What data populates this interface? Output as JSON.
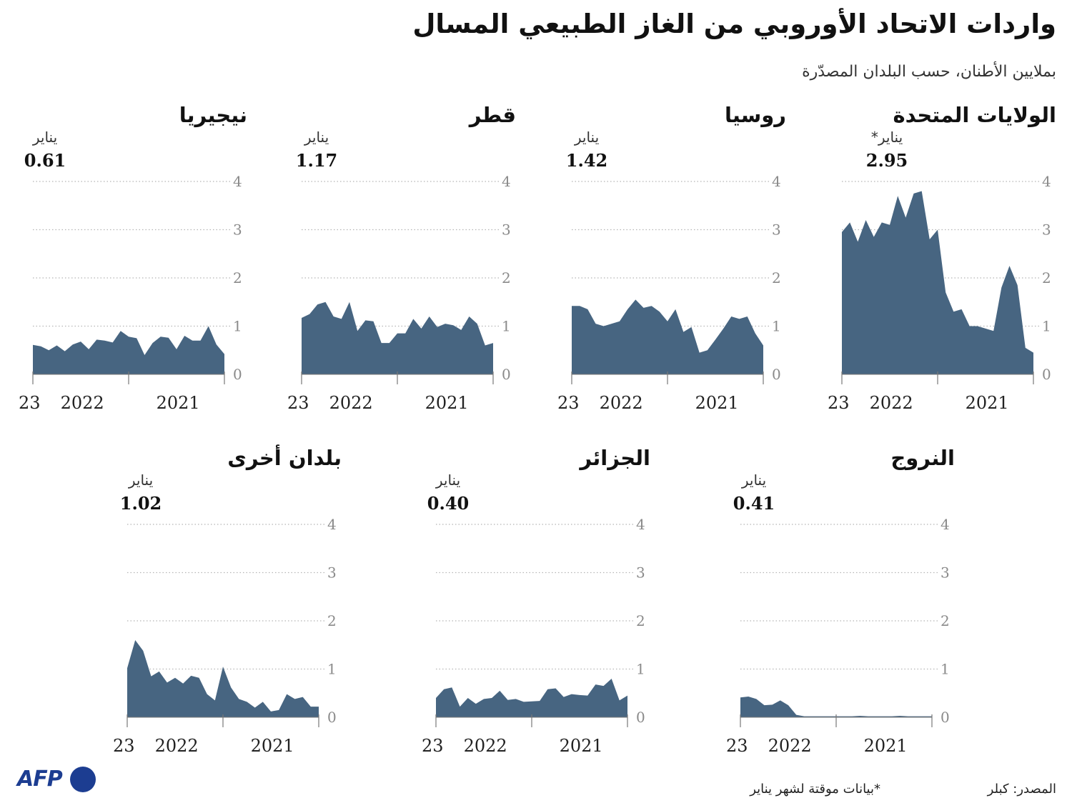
{
  "header": {
    "title": "واردات الاتحاد الأوروبي من الغاز الطبيعي المسال",
    "subtitle": "بملايين الأطنان، حسب البلدان المصدّرة"
  },
  "footer": {
    "source": "المصدر: كبلر",
    "note": "*بيانات موقتة لشهر يناير",
    "logo_text": "AFP"
  },
  "colors": {
    "area": "#476581",
    "grid": "#b5b5b5",
    "axis": "#777777"
  },
  "chart_data": [
    {
      "type": "area",
      "title": "الولايات المتحدة",
      "annotation_label": "يناير*",
      "annotation_value": "2.95",
      "yticks": [
        "0",
        "1",
        "2",
        "3",
        "4"
      ],
      "ylim": [
        0,
        4
      ],
      "xticks": [
        "23",
        "2022",
        "2021"
      ],
      "x_note": "months, newest (January 2023) on the left, going back ~40 months to the right",
      "values": [
        2.95,
        3.15,
        2.75,
        3.2,
        2.85,
        3.15,
        3.1,
        3.7,
        3.25,
        3.75,
        3.8,
        2.8,
        3.0,
        1.7,
        1.3,
        1.35,
        1.0,
        1.0,
        0.95,
        0.9,
        1.8,
        2.25,
        1.85,
        0.55,
        0.45
      ]
    },
    {
      "type": "area",
      "title": "روسيا",
      "annotation_label": "يناير",
      "annotation_value": "1.42",
      "yticks": [
        "0",
        "1",
        "2",
        "3",
        "4"
      ],
      "ylim": [
        0,
        4
      ],
      "xticks": [
        "23",
        "2022",
        "2021"
      ],
      "values": [
        1.42,
        1.42,
        1.35,
        1.05,
        1.0,
        1.05,
        1.1,
        1.35,
        1.55,
        1.38,
        1.42,
        1.3,
        1.1,
        1.35,
        0.88,
        0.98,
        0.45,
        0.5,
        0.72,
        0.95,
        1.2,
        1.15,
        1.2,
        0.85,
        0.6
      ]
    },
    {
      "type": "area",
      "title": "قطر",
      "annotation_label": "يناير",
      "annotation_value": "1.17",
      "yticks": [
        "0",
        "1",
        "2",
        "3",
        "4"
      ],
      "ylim": [
        0,
        4
      ],
      "xticks": [
        "23",
        "2022",
        "2021"
      ],
      "values": [
        1.17,
        1.25,
        1.45,
        1.5,
        1.2,
        1.15,
        1.5,
        0.9,
        1.12,
        1.1,
        0.65,
        0.65,
        0.85,
        0.85,
        1.15,
        0.95,
        1.2,
        0.98,
        1.05,
        1.02,
        0.92,
        1.2,
        1.05,
        0.6,
        0.65
      ]
    },
    {
      "type": "area",
      "title": "نيجيريا",
      "annotation_label": "يناير",
      "annotation_value": "0.61",
      "yticks": [
        "0",
        "1",
        "2",
        "3",
        "4"
      ],
      "ylim": [
        0,
        4
      ],
      "xticks": [
        "23",
        "2022",
        "2021"
      ],
      "values": [
        0.61,
        0.58,
        0.5,
        0.6,
        0.48,
        0.62,
        0.68,
        0.52,
        0.72,
        0.7,
        0.66,
        0.9,
        0.78,
        0.75,
        0.4,
        0.65,
        0.78,
        0.76,
        0.52,
        0.8,
        0.7,
        0.7,
        1.0,
        0.62,
        0.42
      ]
    },
    {
      "type": "area",
      "title": "النروج",
      "annotation_label": "يناير",
      "annotation_value": "0.41",
      "yticks": [
        "0",
        "1",
        "2",
        "3",
        "4"
      ],
      "ylim": [
        0,
        4
      ],
      "xticks": [
        "23",
        "2022",
        "2021"
      ],
      "values": [
        0.41,
        0.43,
        0.38,
        0.25,
        0.26,
        0.35,
        0.25,
        0.05,
        0.02,
        0.02,
        0.02,
        0.02,
        0.02,
        0.02,
        0.02,
        0.03,
        0.02,
        0.02,
        0.02,
        0.02,
        0.03,
        0.02,
        0.02,
        0.02,
        0.02
      ]
    },
    {
      "type": "area",
      "title": "الجزائر",
      "annotation_label": "يناير",
      "annotation_value": "0.40",
      "yticks": [
        "0",
        "1",
        "2",
        "3",
        "4"
      ],
      "ylim": [
        0,
        4
      ],
      "xticks": [
        "23",
        "2022",
        "2021"
      ],
      "values": [
        0.4,
        0.58,
        0.62,
        0.22,
        0.4,
        0.28,
        0.38,
        0.4,
        0.55,
        0.36,
        0.38,
        0.32,
        0.33,
        0.34,
        0.58,
        0.6,
        0.42,
        0.48,
        0.46,
        0.45,
        0.68,
        0.65,
        0.8,
        0.35,
        0.45
      ]
    },
    {
      "type": "area",
      "title": "بلدان أخرى",
      "annotation_label": "يناير",
      "annotation_value": "1.02",
      "yticks": [
        "0",
        "1",
        "2",
        "3",
        "4"
      ],
      "ylim": [
        0,
        4
      ],
      "xticks": [
        "23",
        "2022",
        "2021"
      ],
      "values": [
        1.02,
        1.6,
        1.38,
        0.85,
        0.95,
        0.72,
        0.82,
        0.7,
        0.86,
        0.82,
        0.48,
        0.35,
        1.05,
        0.62,
        0.38,
        0.32,
        0.2,
        0.32,
        0.12,
        0.15,
        0.48,
        0.38,
        0.42,
        0.22,
        0.22
      ]
    }
  ]
}
